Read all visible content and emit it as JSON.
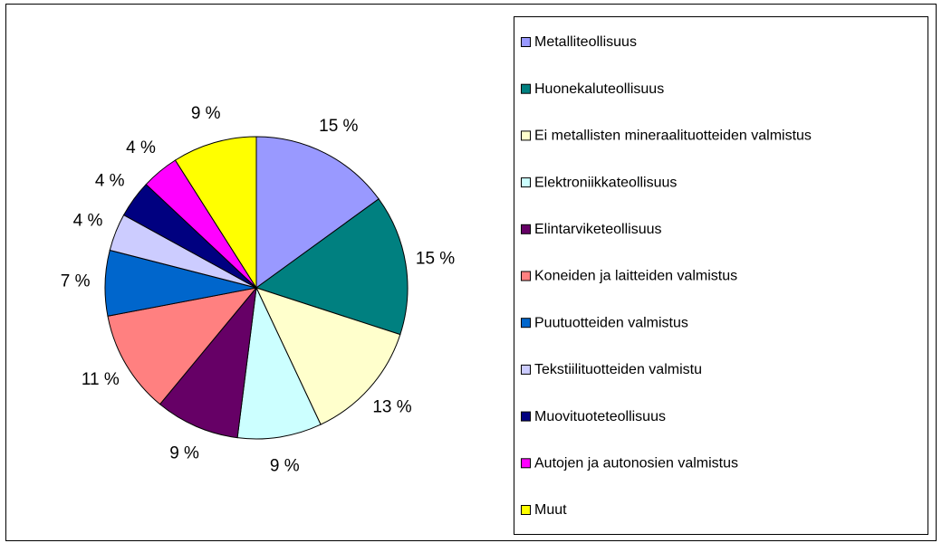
{
  "chart_data": {
    "type": "pie",
    "categories": [
      "Metalliteollisuus",
      "Huonekaluteollisuus",
      "Ei metallisten mineraalituotteiden valmistus",
      "Elektroniikkateollisuus",
      "Elintarviketeollisuus",
      "Koneiden ja laitteiden valmistus",
      "Puutuotteiden valmistus",
      "Tekstiilituotteiden valmistu",
      "Muovituoteteollisuus",
      "Autojen ja autonosien valmistus",
      "Muut"
    ],
    "values": [
      15,
      15,
      13,
      9,
      9,
      11,
      7,
      4,
      4,
      4,
      9
    ],
    "value_labels": [
      "15 %",
      "15 %",
      "13 %",
      "9 %",
      "9 %",
      "11 %",
      "7 %",
      "4 %",
      "4 %",
      "4 %",
      "9 %"
    ],
    "colors": [
      "#9999ff",
      "#008080",
      "#ffffcc",
      "#ccffff",
      "#660066",
      "#ff8080",
      "#0066cc",
      "#ccccff",
      "#000080",
      "#ff00ff",
      "#ffff00"
    ],
    "legend": "right"
  }
}
